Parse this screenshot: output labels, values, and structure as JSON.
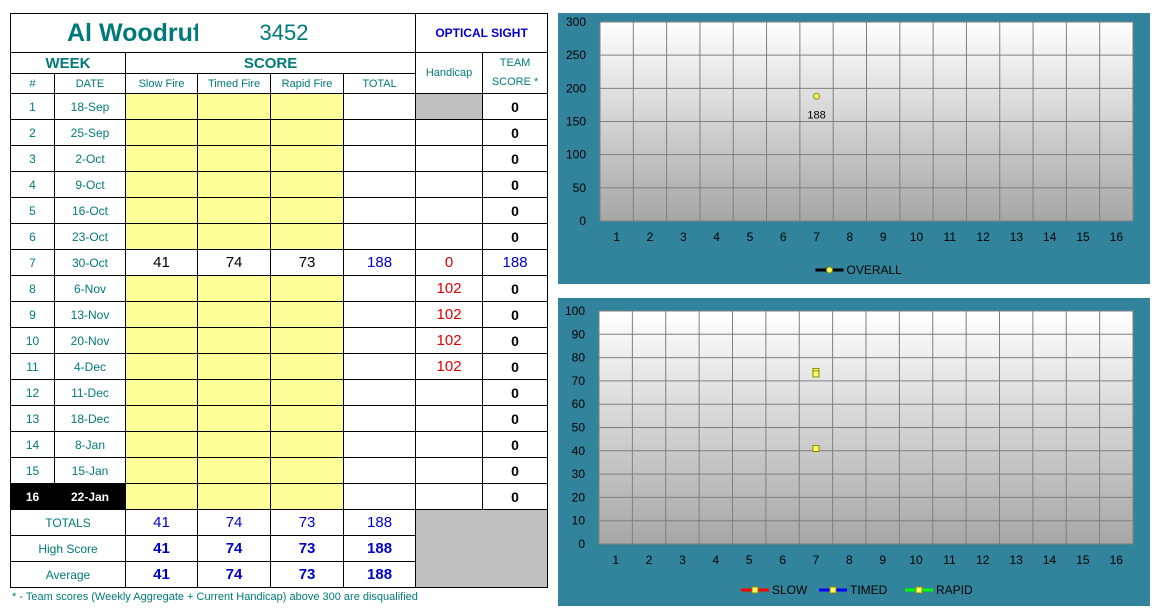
{
  "header": {
    "name": "Al Woodruff",
    "id": "3452",
    "category": "OPTICAL SIGHT"
  },
  "columns": {
    "week": "WEEK",
    "score": "SCORE",
    "num": "#",
    "date": "DATE",
    "slow": "Slow Fire",
    "timed": "Timed Fire",
    "rapid": "Rapid Fire",
    "total": "TOTAL",
    "handicap": "Handicap",
    "team_line1": "TEAM",
    "team_line2": "SCORE *"
  },
  "weeks": [
    {
      "num": "1",
      "date": "18-Sep",
      "slow": "",
      "timed": "",
      "rapid": "",
      "total": "",
      "handicap": "",
      "team": "0"
    },
    {
      "num": "2",
      "date": "25-Sep",
      "slow": "",
      "timed": "",
      "rapid": "",
      "total": "",
      "handicap": "",
      "team": "0"
    },
    {
      "num": "3",
      "date": "2-Oct",
      "slow": "",
      "timed": "",
      "rapid": "",
      "total": "",
      "handicap": "",
      "team": "0"
    },
    {
      "num": "4",
      "date": "9-Oct",
      "slow": "",
      "timed": "",
      "rapid": "",
      "total": "",
      "handicap": "",
      "team": "0"
    },
    {
      "num": "5",
      "date": "16-Oct",
      "slow": "",
      "timed": "",
      "rapid": "",
      "total": "",
      "handicap": "",
      "team": "0"
    },
    {
      "num": "6",
      "date": "23-Oct",
      "slow": "",
      "timed": "",
      "rapid": "",
      "total": "",
      "handicap": "",
      "team": "0"
    },
    {
      "num": "7",
      "date": "30-Oct",
      "slow": "41",
      "timed": "74",
      "rapid": "73",
      "total": "188",
      "handicap": "0",
      "team": "188"
    },
    {
      "num": "8",
      "date": "6-Nov",
      "slow": "",
      "timed": "",
      "rapid": "",
      "total": "",
      "handicap": "102",
      "team": "0"
    },
    {
      "num": "9",
      "date": "13-Nov",
      "slow": "",
      "timed": "",
      "rapid": "",
      "total": "",
      "handicap": "102",
      "team": "0"
    },
    {
      "num": "10",
      "date": "20-Nov",
      "slow": "",
      "timed": "",
      "rapid": "",
      "total": "",
      "handicap": "102",
      "team": "0"
    },
    {
      "num": "11",
      "date": "4-Dec",
      "slow": "",
      "timed": "",
      "rapid": "",
      "total": "",
      "handicap": "102",
      "team": "0"
    },
    {
      "num": "12",
      "date": "11-Dec",
      "slow": "",
      "timed": "",
      "rapid": "",
      "total": "",
      "handicap": "",
      "team": "0"
    },
    {
      "num": "13",
      "date": "18-Dec",
      "slow": "",
      "timed": "",
      "rapid": "",
      "total": "",
      "handicap": "",
      "team": "0"
    },
    {
      "num": "14",
      "date": "8-Jan",
      "slow": "",
      "timed": "",
      "rapid": "",
      "total": "",
      "handicap": "",
      "team": "0"
    },
    {
      "num": "15",
      "date": "15-Jan",
      "slow": "",
      "timed": "",
      "rapid": "",
      "total": "",
      "handicap": "",
      "team": "0"
    },
    {
      "num": "16",
      "date": "22-Jan",
      "slow": "",
      "timed": "",
      "rapid": "",
      "total": "",
      "handicap": "",
      "team": "0"
    }
  ],
  "current_week": 16,
  "summary": [
    {
      "label": "TOTALS",
      "slow": "41",
      "timed": "74",
      "rapid": "73",
      "total": "188"
    },
    {
      "label": "High Score",
      "slow": "41",
      "timed": "74",
      "rapid": "73",
      "total": "188"
    },
    {
      "label": "Average",
      "slow": "41",
      "timed": "74",
      "rapid": "73",
      "total": "188"
    }
  ],
  "footnote": "* - Team scores (Weekly Aggregate + Current Handicap) above 300 are disqualified",
  "colors": {
    "teal": "#007a78",
    "blue": "#0000cc",
    "red": "#e00000",
    "yellow_cell": "#ffff99",
    "panel": "#31849b",
    "marker": "#ffff66"
  },
  "chart_data": [
    {
      "type": "line",
      "title": "",
      "xlabel": "",
      "ylabel": "",
      "x": [
        1,
        2,
        3,
        4,
        5,
        6,
        7,
        8,
        9,
        10,
        11,
        12,
        13,
        14,
        15,
        16
      ],
      "ylim": [
        0,
        300
      ],
      "yticks": [
        0,
        50,
        100,
        150,
        200,
        250,
        300
      ],
      "grid": true,
      "legend_position": "bottom",
      "series": [
        {
          "name": "OVERALL",
          "color": "#000000",
          "values": [
            null,
            null,
            null,
            null,
            null,
            null,
            188,
            null,
            null,
            null,
            null,
            null,
            null,
            null,
            null,
            null
          ],
          "data_labels": true
        }
      ]
    },
    {
      "type": "line",
      "title": "",
      "xlabel": "",
      "ylabel": "",
      "x": [
        1,
        2,
        3,
        4,
        5,
        6,
        7,
        8,
        9,
        10,
        11,
        12,
        13,
        14,
        15,
        16
      ],
      "ylim": [
        0,
        100
      ],
      "yticks": [
        0,
        10,
        20,
        30,
        40,
        50,
        60,
        70,
        80,
        90,
        100
      ],
      "grid": true,
      "legend_position": "bottom",
      "series": [
        {
          "name": "SLOW",
          "color": "#ff0000",
          "values": [
            null,
            null,
            null,
            null,
            null,
            null,
            41,
            null,
            null,
            null,
            null,
            null,
            null,
            null,
            null,
            null
          ]
        },
        {
          "name": "TIMED",
          "color": "#0000ff",
          "values": [
            null,
            null,
            null,
            null,
            null,
            null,
            74,
            null,
            null,
            null,
            null,
            null,
            null,
            null,
            null,
            null
          ]
        },
        {
          "name": "RAPID",
          "color": "#00ff00",
          "values": [
            null,
            null,
            null,
            null,
            null,
            null,
            73,
            null,
            null,
            null,
            null,
            null,
            null,
            null,
            null,
            null
          ]
        }
      ]
    }
  ]
}
